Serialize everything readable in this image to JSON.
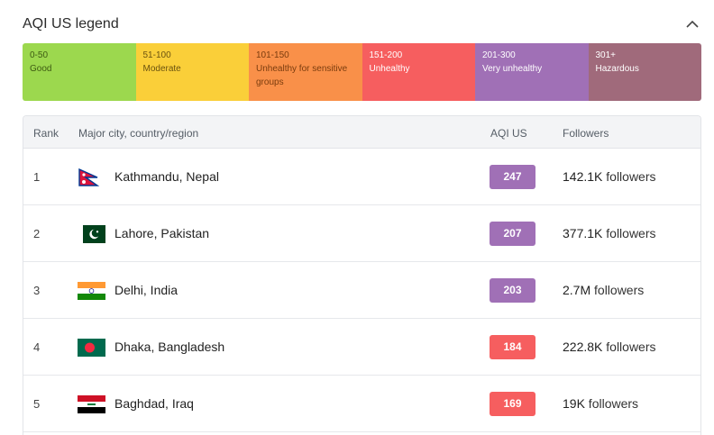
{
  "legend": {
    "title": "AQI US legend",
    "segments": [
      {
        "range": "0-50",
        "label": "Good",
        "color": "#9cd84e",
        "text_color": "#3d5a12"
      },
      {
        "range": "51-100",
        "label": "Moderate",
        "color": "#facf39",
        "text_color": "#6b5310"
      },
      {
        "range": "101-150",
        "label": "Unhealthy for sensitive groups",
        "color": "#f99049",
        "text_color": "#7a3c0e"
      },
      {
        "range": "151-200",
        "label": "Unhealthy",
        "color": "#f65e5f",
        "text_color": "#ffffff"
      },
      {
        "range": "201-300",
        "label": "Very unhealthy",
        "color": "#a070b6",
        "text_color": "#ffffff"
      },
      {
        "range": "301+",
        "label": "Hazardous",
        "color": "#a06a7b",
        "text_color": "#ffffff"
      }
    ]
  },
  "table": {
    "headers": {
      "rank": "Rank",
      "city": "Major city, country/region",
      "aqi": "AQI US",
      "followers": "Followers"
    },
    "rows": [
      {
        "rank": "1",
        "city": "Kathmandu, Nepal",
        "flag": "nepal-flag-icon",
        "aqi": "247",
        "aqi_color": "#a070b6",
        "followers_num": "142.1K",
        "followers_word": " followers"
      },
      {
        "rank": "2",
        "city": "Lahore, Pakistan",
        "flag": "pakistan-flag-icon",
        "aqi": "207",
        "aqi_color": "#a070b6",
        "followers_num": "377.1K",
        "followers_word": " followers"
      },
      {
        "rank": "3",
        "city": "Delhi, India",
        "flag": "india-flag-icon",
        "aqi": "203",
        "aqi_color": "#a070b6",
        "followers_num": "2.7M",
        "followers_word": " followers"
      },
      {
        "rank": "4",
        "city": "Dhaka, Bangladesh",
        "flag": "bangladesh-flag-icon",
        "aqi": "184",
        "aqi_color": "#f65e5f",
        "followers_num": "222.8K",
        "followers_word": " followers"
      },
      {
        "rank": "5",
        "city": "Baghdad, Iraq",
        "flag": "iraq-flag-icon",
        "aqi": "169",
        "aqi_color": "#f65e5f",
        "followers_num": "19K",
        "followers_word": " followers"
      }
    ]
  }
}
